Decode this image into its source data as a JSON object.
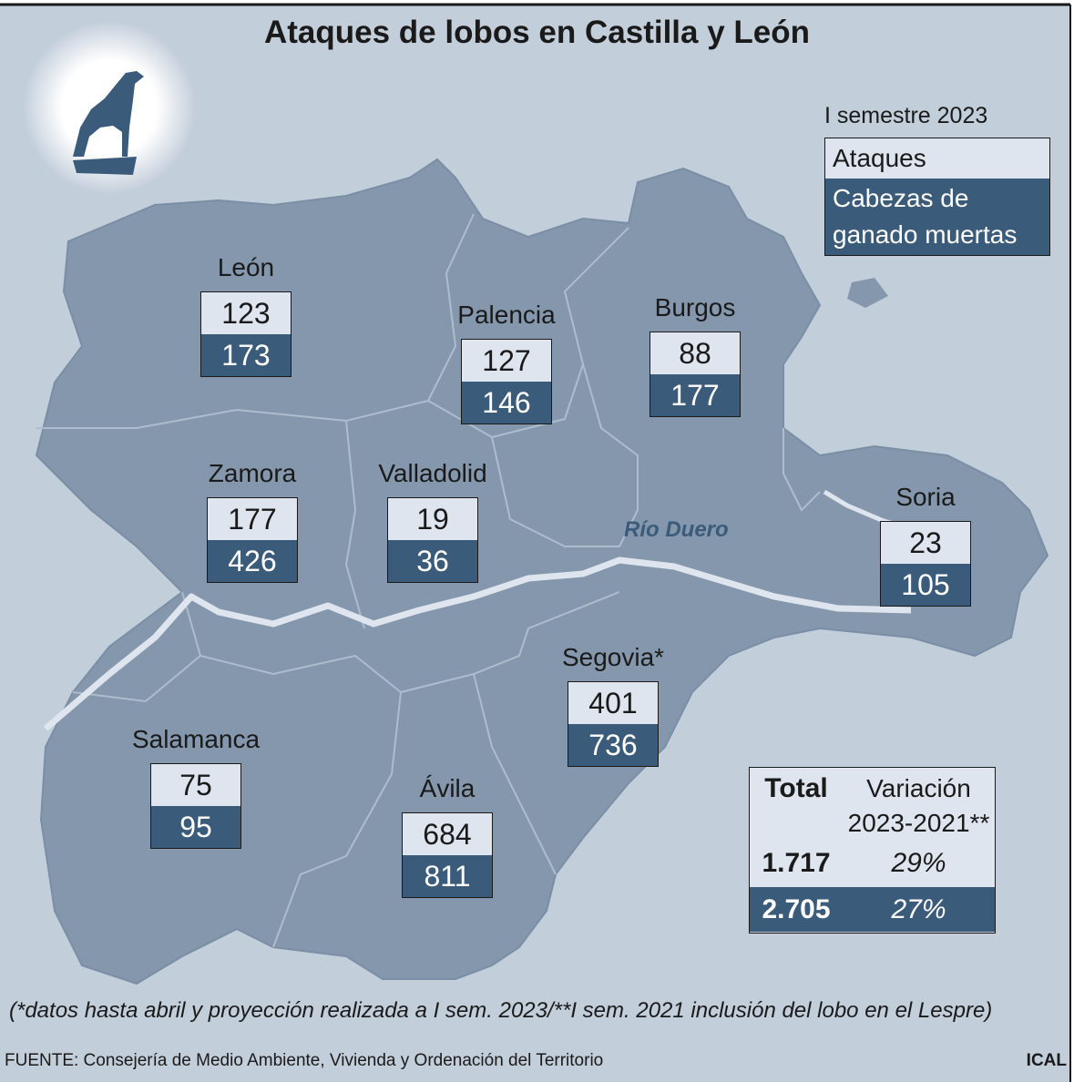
{
  "title": "Ataques de lobos en Castilla y León",
  "legend": {
    "period": "I semestre 2023",
    "items": [
      "Ataques",
      "Cabezas de\nganado muertas"
    ]
  },
  "river_label": "Río Duero",
  "provinces": [
    {
      "name": "León",
      "attacks": 123,
      "livestock_killed": 173
    },
    {
      "name": "Palencia",
      "attacks": 127,
      "livestock_killed": 146
    },
    {
      "name": "Burgos",
      "attacks": 88,
      "livestock_killed": 177
    },
    {
      "name": "Zamora",
      "attacks": 177,
      "livestock_killed": 426
    },
    {
      "name": "Valladolid",
      "attacks": 19,
      "livestock_killed": 36
    },
    {
      "name": "Soria",
      "attacks": 23,
      "livestock_killed": 105
    },
    {
      "name": "Segovia*",
      "attacks": 401,
      "livestock_killed": 736
    },
    {
      "name": "Salamanca",
      "attacks": 75,
      "livestock_killed": 95
    },
    {
      "name": "Ávila",
      "attacks": 684,
      "livestock_killed": 811
    }
  ],
  "totals": {
    "header": [
      "Total",
      "Variación\n2023-2021**"
    ],
    "rows": [
      [
        "1.717",
        "29%"
      ],
      [
        "2.705",
        "27%"
      ]
    ]
  },
  "footnote": "(*datos hasta abril y proyección realizada a I sem. 2023/**I sem. 2021 inclusión del lobo en el Lespre)",
  "source": "FUENTE: Consejería de Medio Ambiente, Vivienda y Ordenación del Territorio",
  "credit": "ICAL"
}
